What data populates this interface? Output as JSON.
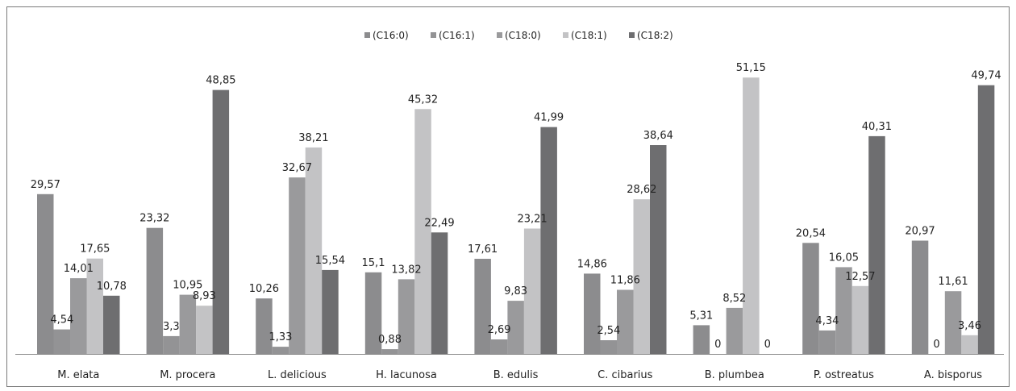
{
  "chart_data": {
    "type": "bar",
    "title": "",
    "xlabel": "",
    "ylabel": "",
    "ylim": [
      0,
      57
    ],
    "grid": false,
    "legend_position": "top-center",
    "categories": [
      "M. elata",
      "M. procera",
      "L. delicious",
      "H. lacunosa",
      "B. edulis",
      "C. cibarius",
      "B. plumbea",
      "P. ostreatus",
      "A. bisporus"
    ],
    "series": [
      {
        "name": "(C16:0)",
        "color": "#8c8c8e",
        "values": [
          29.57,
          23.32,
          10.26,
          15.1,
          17.61,
          14.86,
          5.31,
          20.54,
          20.97
        ],
        "labels": [
          "29,57",
          "23,32",
          "10,26",
          "15,1",
          "17,61",
          "14,86",
          "5,31",
          "20,54",
          "20,97"
        ]
      },
      {
        "name": "(C16:1)",
        "color": "#939395",
        "values": [
          4.54,
          3.3,
          1.33,
          0.88,
          2.69,
          2.54,
          0,
          4.34,
          0
        ],
        "labels": [
          "4,54",
          "3,3",
          "1,33",
          "0,88",
          "2,69",
          "2,54",
          "0",
          "4,34",
          "0"
        ]
      },
      {
        "name": "(C18:0)",
        "color": "#9a9a9c",
        "values": [
          14.01,
          10.95,
          32.67,
          13.82,
          9.83,
          11.86,
          8.52,
          16.05,
          11.61
        ],
        "labels": [
          "14,01",
          "10,95",
          "32,67",
          "13,82",
          "9,83",
          "11,86",
          "8,52",
          "16,05",
          "11,61"
        ]
      },
      {
        "name": "(C18:1)",
        "color": "#c3c3c5",
        "values": [
          17.65,
          8.93,
          38.21,
          45.32,
          23.21,
          28.62,
          51.15,
          12.57,
          3.46
        ],
        "labels": [
          "17,65",
          "8,93",
          "38,21",
          "45,32",
          "23,21",
          "28,62",
          "51,15",
          "12,57",
          "3,46"
        ]
      },
      {
        "name": "(C18:2)",
        "color": "#6e6e70",
        "values": [
          10.78,
          48.85,
          15.54,
          22.49,
          41.99,
          38.64,
          0,
          40.31,
          49.74
        ],
        "labels": [
          "10,78",
          "48,85",
          "15,54",
          "22,49",
          "41,99",
          "38,64",
          "0",
          "40,31",
          "49,74"
        ]
      }
    ]
  }
}
